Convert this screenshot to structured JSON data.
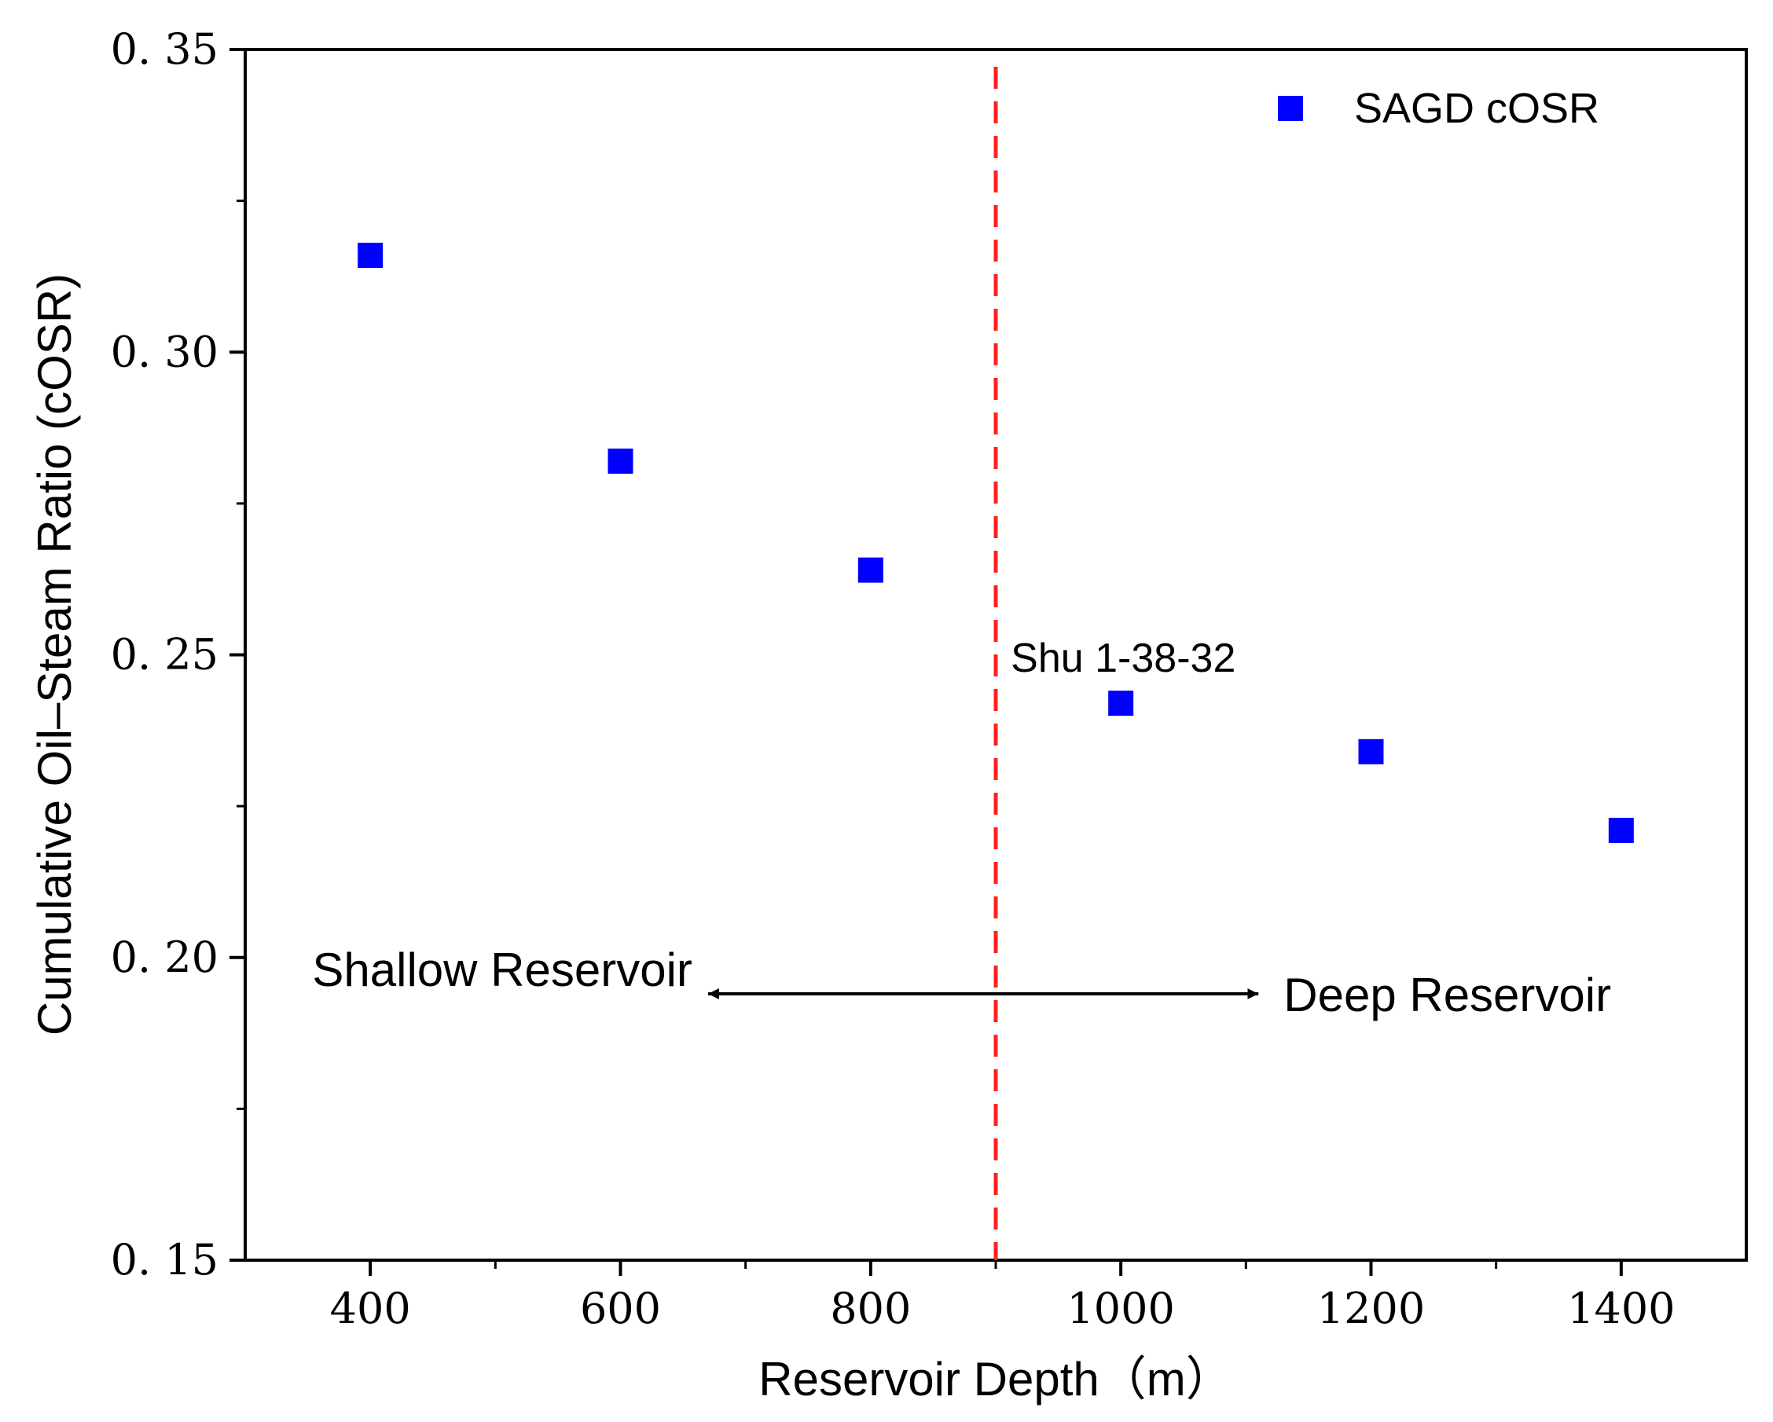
{
  "chart_data": {
    "type": "scatter",
    "xlabel": "Reservoir Depth（m）",
    "ylabel": "Cumulative Oil–Steam Ratio (cOSR)",
    "xlim": [
      300,
      1500
    ],
    "ylim": [
      0.15,
      0.35
    ],
    "xticks": [
      400,
      600,
      800,
      1000,
      1200,
      1400
    ],
    "xtick_labels": [
      "400",
      "600",
      "800",
      "1000",
      "1200",
      "1400"
    ],
    "yticks": [
      0.15,
      0.2,
      0.25,
      0.3,
      0.35
    ],
    "ytick_labels": [
      "0. 15",
      "0. 20",
      "0. 25",
      "0. 30",
      "0. 35"
    ],
    "yminor_ticks": [
      0.175,
      0.225,
      0.275,
      0.325
    ],
    "xminor_ticks": [
      500,
      700,
      900,
      1100,
      1300
    ],
    "grid": false,
    "legend_position": "top-right",
    "series": [
      {
        "name": "SAGD cOSR",
        "color": "#0000ff",
        "marker": "square",
        "x": [
          400,
          600,
          800,
          1000,
          1200,
          1400
        ],
        "y": [
          0.316,
          0.282,
          0.264,
          0.242,
          0.234,
          0.221
        ]
      }
    ],
    "divider": {
      "x": 900,
      "color": "#ff2020",
      "style": "dashed"
    },
    "annotations": {
      "point_label": {
        "text": "Shu 1-38-32",
        "x": 1000,
        "y": 0.242
      },
      "left_region": "Shallow Reservoir",
      "right_region": "Deep Reservoir",
      "arrow": {
        "y": 0.194,
        "x_from": 670,
        "x_to": 1110
      }
    }
  }
}
